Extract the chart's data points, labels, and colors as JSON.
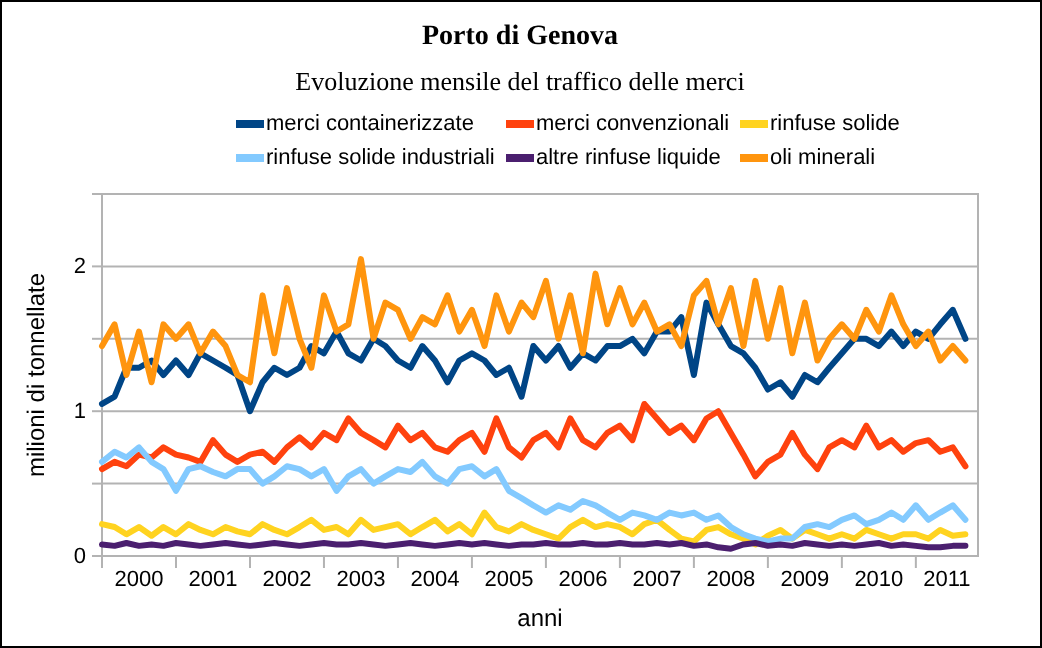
{
  "chart_data": {
    "type": "line",
    "title": "Porto di Genova",
    "subtitle": "Evoluzione mensile del traffico delle merci",
    "xlabel": "anni",
    "ylabel": "milioni di tonnellate",
    "x": [
      2000,
      2000.17,
      2000.33,
      2000.5,
      2000.67,
      2000.83,
      2001,
      2001.17,
      2001.33,
      2001.5,
      2001.67,
      2001.83,
      2002,
      2002.17,
      2002.33,
      2002.5,
      2002.67,
      2002.83,
      2003,
      2003.17,
      2003.33,
      2003.5,
      2003.67,
      2003.83,
      2004,
      2004.17,
      2004.33,
      2004.5,
      2004.67,
      2004.83,
      2005,
      2005.17,
      2005.33,
      2005.5,
      2005.67,
      2005.83,
      2006,
      2006.17,
      2006.33,
      2006.5,
      2006.67,
      2006.83,
      2007,
      2007.17,
      2007.33,
      2007.5,
      2007.67,
      2007.83,
      2008,
      2008.17,
      2008.33,
      2008.5,
      2008.67,
      2008.83,
      2009,
      2009.17,
      2009.33,
      2009.5,
      2009.67,
      2009.83,
      2010,
      2010.17,
      2010.33,
      2010.5,
      2010.67,
      2010.83,
      2011,
      2011.17,
      2011.33,
      2011.5,
      2011.67
    ],
    "xlim": [
      2000,
      2011.84
    ],
    "xticks": [
      {
        "value": 2000,
        "label": null
      },
      {
        "value": 2000.5,
        "label": "2000"
      },
      {
        "value": 2001,
        "label": null
      },
      {
        "value": 2001.5,
        "label": "2001"
      },
      {
        "value": 2002,
        "label": null
      },
      {
        "value": 2002.5,
        "label": "2002"
      },
      {
        "value": 2003,
        "label": null
      },
      {
        "value": 2003.5,
        "label": "2003"
      },
      {
        "value": 2004,
        "label": null
      },
      {
        "value": 2004.5,
        "label": "2004"
      },
      {
        "value": 2005,
        "label": null
      },
      {
        "value": 2005.5,
        "label": "2005"
      },
      {
        "value": 2006,
        "label": null
      },
      {
        "value": 2006.5,
        "label": "2006"
      },
      {
        "value": 2007,
        "label": null
      },
      {
        "value": 2007.5,
        "label": "2007"
      },
      {
        "value": 2008,
        "label": null
      },
      {
        "value": 2008.5,
        "label": "2008"
      },
      {
        "value": 2009,
        "label": null
      },
      {
        "value": 2009.5,
        "label": "2009"
      },
      {
        "value": 2010,
        "label": null
      },
      {
        "value": 2010.5,
        "label": "2010"
      },
      {
        "value": 2011,
        "label": null
      },
      {
        "value": 2011.42,
        "label": "2011"
      }
    ],
    "ylim": [
      0,
      2.5
    ],
    "yticks": [
      0,
      {
        "value": 0.5,
        "label": null
      },
      1,
      {
        "value": 1.5,
        "label": null
      },
      2
    ],
    "grid": "y",
    "legend": "top",
    "marker": "none",
    "line_style": "solid",
    "series": [
      {
        "name": "merci containerizzate",
        "color": "#004586",
        "values": [
          1.05,
          1.1,
          1.3,
          1.3,
          1.35,
          1.25,
          1.35,
          1.25,
          1.4,
          1.35,
          1.3,
          1.25,
          1.0,
          1.2,
          1.3,
          1.25,
          1.3,
          1.45,
          1.4,
          1.55,
          1.4,
          1.35,
          1.5,
          1.45,
          1.35,
          1.3,
          1.45,
          1.35,
          1.2,
          1.35,
          1.4,
          1.35,
          1.25,
          1.3,
          1.1,
          1.45,
          1.35,
          1.45,
          1.3,
          1.4,
          1.35,
          1.45,
          1.45,
          1.5,
          1.4,
          1.55,
          1.55,
          1.65,
          1.25,
          1.75,
          1.6,
          1.45,
          1.4,
          1.3,
          1.15,
          1.2,
          1.1,
          1.25,
          1.2,
          1.3,
          1.4,
          1.5,
          1.5,
          1.45,
          1.55,
          1.45,
          1.55,
          1.5,
          1.6,
          1.7,
          1.5
        ]
      },
      {
        "name": "merci convenzionali",
        "color": "#ff420e",
        "values": [
          0.6,
          0.65,
          0.62,
          0.7,
          0.68,
          0.75,
          0.7,
          0.68,
          0.65,
          0.8,
          0.7,
          0.65,
          0.7,
          0.72,
          0.65,
          0.75,
          0.82,
          0.75,
          0.85,
          0.8,
          0.95,
          0.85,
          0.8,
          0.75,
          0.9,
          0.8,
          0.85,
          0.75,
          0.72,
          0.8,
          0.85,
          0.72,
          0.95,
          0.75,
          0.68,
          0.8,
          0.85,
          0.75,
          0.95,
          0.8,
          0.75,
          0.85,
          0.9,
          0.8,
          1.05,
          0.95,
          0.85,
          0.9,
          0.8,
          0.95,
          1.0,
          0.85,
          0.7,
          0.55,
          0.65,
          0.7,
          0.85,
          0.7,
          0.6,
          0.75,
          0.8,
          0.75,
          0.9,
          0.75,
          0.8,
          0.72,
          0.78,
          0.8,
          0.72,
          0.75,
          0.62
        ]
      },
      {
        "name": "rinfuse solide",
        "color": "#ffd320",
        "values": [
          0.22,
          0.2,
          0.15,
          0.2,
          0.14,
          0.2,
          0.15,
          0.22,
          0.18,
          0.15,
          0.2,
          0.17,
          0.15,
          0.22,
          0.18,
          0.15,
          0.2,
          0.25,
          0.18,
          0.2,
          0.15,
          0.25,
          0.18,
          0.2,
          0.22,
          0.15,
          0.2,
          0.25,
          0.17,
          0.22,
          0.15,
          0.3,
          0.2,
          0.17,
          0.22,
          0.18,
          0.15,
          0.12,
          0.2,
          0.25,
          0.2,
          0.22,
          0.2,
          0.15,
          0.22,
          0.25,
          0.18,
          0.12,
          0.1,
          0.18,
          0.2,
          0.15,
          0.12,
          0.08,
          0.14,
          0.18,
          0.12,
          0.18,
          0.15,
          0.12,
          0.15,
          0.12,
          0.18,
          0.15,
          0.12,
          0.15,
          0.15,
          0.12,
          0.18,
          0.14,
          0.15
        ]
      },
      {
        "name": "rinfuse solide industriali",
        "color": "#83caff",
        "values": [
          0.65,
          0.72,
          0.68,
          0.75,
          0.65,
          0.6,
          0.45,
          0.6,
          0.62,
          0.58,
          0.55,
          0.6,
          0.6,
          0.5,
          0.55,
          0.62,
          0.6,
          0.55,
          0.6,
          0.45,
          0.55,
          0.6,
          0.5,
          0.55,
          0.6,
          0.58,
          0.65,
          0.55,
          0.5,
          0.6,
          0.62,
          0.55,
          0.6,
          0.45,
          0.4,
          0.35,
          0.3,
          0.35,
          0.32,
          0.38,
          0.35,
          0.3,
          0.25,
          0.3,
          0.28,
          0.25,
          0.3,
          0.28,
          0.3,
          0.25,
          0.28,
          0.2,
          0.15,
          0.12,
          0.1,
          0.12,
          0.12,
          0.2,
          0.22,
          0.2,
          0.25,
          0.28,
          0.22,
          0.25,
          0.3,
          0.25,
          0.35,
          0.25,
          0.3,
          0.35,
          0.25
        ]
      },
      {
        "name": "altre rinfuse liquide",
        "color": "#4b1f6f",
        "values": [
          0.08,
          0.07,
          0.09,
          0.07,
          0.08,
          0.07,
          0.09,
          0.08,
          0.07,
          0.08,
          0.09,
          0.08,
          0.07,
          0.08,
          0.09,
          0.08,
          0.07,
          0.08,
          0.09,
          0.08,
          0.08,
          0.09,
          0.08,
          0.07,
          0.08,
          0.09,
          0.08,
          0.07,
          0.08,
          0.09,
          0.08,
          0.09,
          0.08,
          0.07,
          0.08,
          0.08,
          0.09,
          0.08,
          0.08,
          0.09,
          0.08,
          0.08,
          0.09,
          0.08,
          0.08,
          0.09,
          0.08,
          0.09,
          0.07,
          0.08,
          0.06,
          0.05,
          0.08,
          0.09,
          0.07,
          0.08,
          0.07,
          0.09,
          0.08,
          0.07,
          0.08,
          0.07,
          0.08,
          0.09,
          0.07,
          0.08,
          0.07,
          0.06,
          0.06,
          0.07,
          0.07
        ]
      },
      {
        "name": "oli minerali",
        "color": "#ff950e",
        "values": [
          1.45,
          1.6,
          1.25,
          1.55,
          1.2,
          1.6,
          1.5,
          1.6,
          1.4,
          1.55,
          1.45,
          1.25,
          1.2,
          1.8,
          1.4,
          1.85,
          1.5,
          1.3,
          1.8,
          1.55,
          1.6,
          2.05,
          1.5,
          1.75,
          1.7,
          1.5,
          1.65,
          1.6,
          1.8,
          1.55,
          1.7,
          1.45,
          1.8,
          1.55,
          1.75,
          1.65,
          1.9,
          1.5,
          1.8,
          1.4,
          1.95,
          1.6,
          1.85,
          1.6,
          1.75,
          1.55,
          1.6,
          1.45,
          1.8,
          1.9,
          1.6,
          1.85,
          1.45,
          1.9,
          1.5,
          1.85,
          1.4,
          1.75,
          1.35,
          1.5,
          1.6,
          1.5,
          1.7,
          1.55,
          1.8,
          1.6,
          1.45,
          1.55,
          1.35,
          1.45,
          1.35
        ]
      }
    ]
  }
}
